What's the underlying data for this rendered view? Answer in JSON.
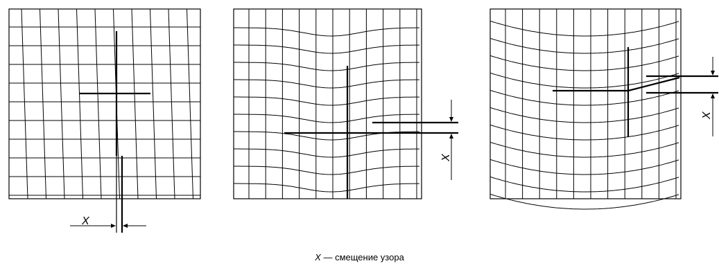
{
  "figure": {
    "panels": [
      {
        "id": "skew",
        "x_label": "X"
      },
      {
        "id": "bow",
        "x_label": "X"
      },
      {
        "id": "curve",
        "x_label": "X"
      }
    ],
    "caption": {
      "symbol": "X",
      "text": " — смещение узора"
    },
    "colors": {
      "line": "#000000",
      "background": "#ffffff"
    }
  }
}
